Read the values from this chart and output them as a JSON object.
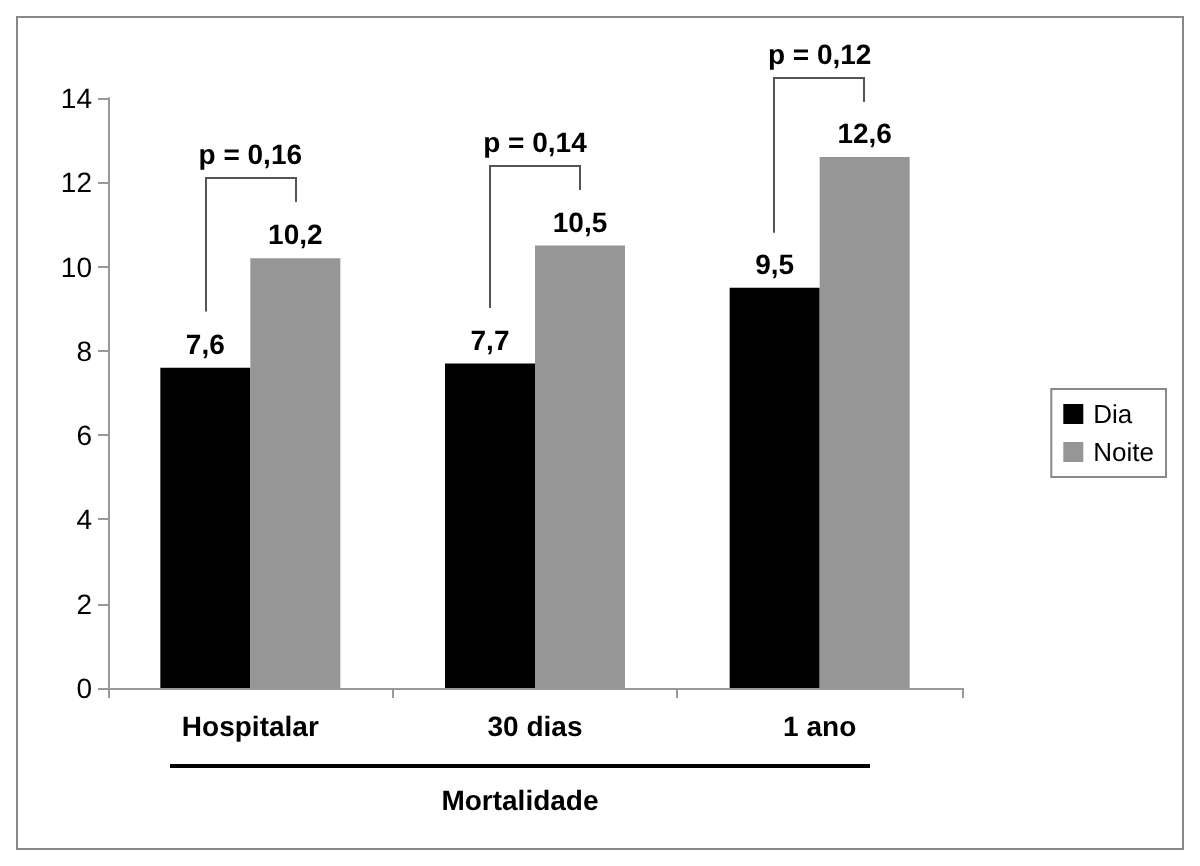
{
  "chart_data": {
    "type": "bar",
    "xlabel": "Mortalidade",
    "categories": [
      "Hospitalar",
      "30 dias",
      "1 ano"
    ],
    "series": [
      {
        "name": "Dia",
        "color": "#000000",
        "values": [
          7.6,
          7.7,
          9.5
        ],
        "value_labels": [
          "7,6",
          "7,7",
          "9,5"
        ]
      },
      {
        "name": "Noite",
        "color": "#969696",
        "values": [
          10.2,
          10.5,
          12.6
        ],
        "value_labels": [
          "10,2",
          "10,5",
          "12,6"
        ]
      }
    ],
    "ylim": [
      0,
      14
    ],
    "yticks": [
      0,
      2,
      4,
      6,
      8,
      10,
      12,
      14
    ],
    "grid": false,
    "legend": "right",
    "annotations": [
      "p = 0,16",
      "p = 0,14",
      "p = 0,12"
    ]
  }
}
